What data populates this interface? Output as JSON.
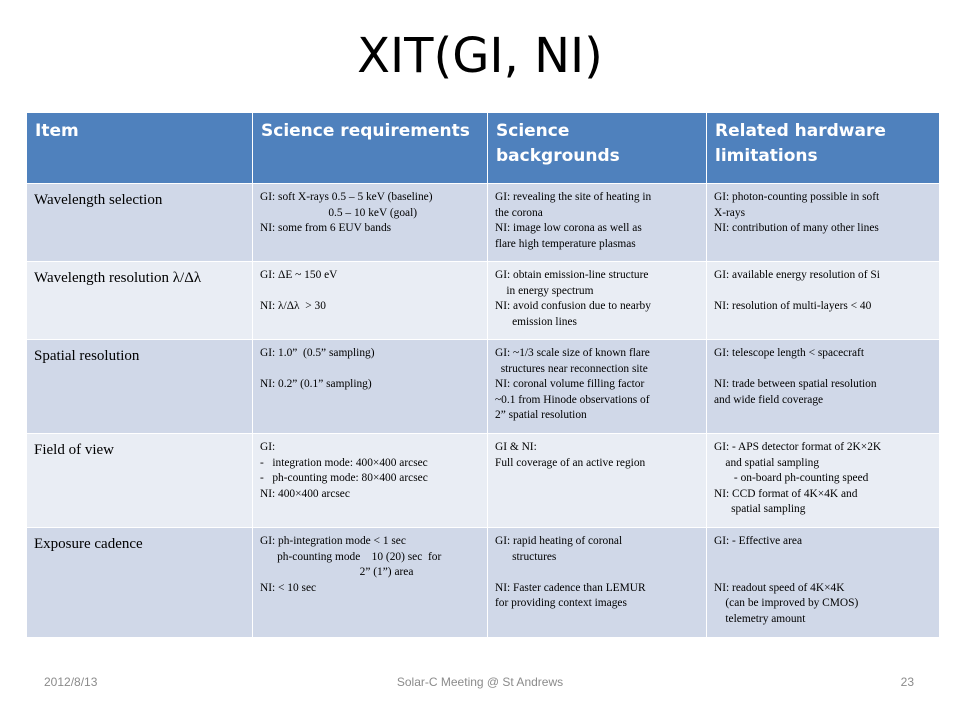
{
  "slide": {
    "title": "XIT(GI, NI)",
    "footer_date": "2012/8/13",
    "footer_center": "Solar-C Meeting @ St Andrews",
    "page_number": "23"
  },
  "table": {
    "headers": [
      "Item",
      "Science requirements",
      "Science backgrounds",
      "Related hardware limitations"
    ],
    "rows": [
      {
        "item": "Wavelength selection",
        "requirements": [
          "GI: soft X-rays 0.5 – 5 keV (baseline)",
          "                        0.5 – 10 keV (goal)",
          "NI: some from 6 EUV bands"
        ],
        "backgrounds": [
          "GI: revealing the site of heating in",
          "the corona",
          "NI: image low corona as well as",
          "flare high temperature plasmas"
        ],
        "limitations": [
          "GI: photon-counting possible in soft",
          "X-rays",
          "NI: contribution of many other lines"
        ]
      },
      {
        "item": "Wavelength resolution λ/Δλ",
        "requirements": [
          "GI: ΔE ~ 150 eV",
          "",
          "NI: λ/Δλ  > 30"
        ],
        "backgrounds": [
          "GI: obtain emission-line structure",
          "    in energy spectrum",
          "NI: avoid confusion due to nearby",
          "      emission lines"
        ],
        "limitations": [
          "GI: available energy resolution of Si",
          "",
          "NI: resolution of multi-layers < 40"
        ]
      },
      {
        "item": "Spatial resolution",
        "requirements": [
          "GI: 1.0”  (0.5” sampling)",
          "",
          "NI: 0.2” (0.1” sampling)"
        ],
        "backgrounds": [
          "GI: ~1/3 scale size of known flare",
          "  structures near reconnection site",
          "NI: coronal volume filling factor",
          "~0.1 from Hinode observations of",
          "2” spatial resolution"
        ],
        "limitations": [
          "GI: telescope length < spacecraft",
          "",
          "NI: trade between spatial resolution",
          "and wide field coverage"
        ]
      },
      {
        "item": "Field of view",
        "requirements": [
          "GI:",
          "-   integration mode: 400×400 arcsec",
          "-   ph-counting mode: 80×400 arcsec",
          "NI: 400×400 arcsec"
        ],
        "backgrounds": [
          "GI & NI:",
          "Full coverage of an active region"
        ],
        "limitations": [
          "GI: - APS detector format of 2K×2K",
          "    and spatial sampling",
          "       - on-board ph-counting speed",
          "NI: CCD format of 4K×4K and",
          "      spatial sampling"
        ]
      },
      {
        "item": "Exposure cadence",
        "requirements": [
          "GI: ph-integration mode < 1 sec",
          "      ph-counting mode    10 (20) sec  for",
          "                                   2” (1”) area",
          "NI: < 10 sec"
        ],
        "backgrounds": [
          "GI: rapid heating of coronal",
          "      structures",
          "",
          "NI: Faster cadence than LEMUR",
          "for providing context images"
        ],
        "limitations": [
          "GI: - Effective area",
          "",
          "",
          "NI: readout speed of 4K×4K",
          "    (can be improved by CMOS)",
          "    telemetry amount"
        ]
      }
    ]
  }
}
